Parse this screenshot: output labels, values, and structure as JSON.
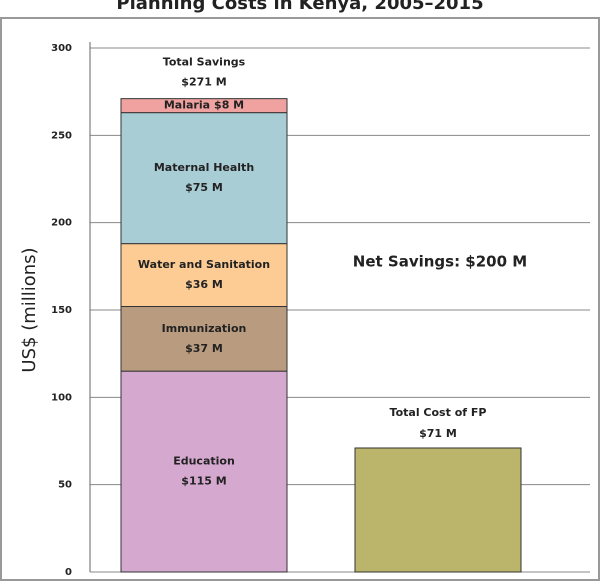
{
  "chart_data": {
    "type": "stacked_bar",
    "title": "Planning Costs in Kenya, 2005–2015",
    "ylabel": "US$ (millions)",
    "categories": [
      null,
      null
    ],
    "ylim": [
      0,
      300
    ],
    "yticks": [
      0,
      50,
      100,
      150,
      200,
      250,
      300
    ],
    "grid": true,
    "series": [
      {
        "name": "Education",
        "color": "#d5a8d0",
        "values": [
          115,
          null
        ],
        "value_labels": [
          "$115 M",
          null
        ]
      },
      {
        "name": "Immunization",
        "color": "#b99c80",
        "values": [
          37,
          null
        ],
        "value_labels": [
          "$37 M",
          null
        ]
      },
      {
        "name": "Water and Sanitation",
        "color": "#fdcc95",
        "values": [
          36,
          null
        ],
        "value_labels": [
          "$36 M",
          null
        ]
      },
      {
        "name": "Maternal Health",
        "color": "#a9cdd5",
        "values": [
          75,
          null
        ],
        "value_labels": [
          "$75 M",
          null
        ]
      },
      {
        "name": "Malaria",
        "color": "#f0a2a0",
        "values": [
          8,
          null
        ],
        "value_labels": [
          "$8 M",
          null
        ]
      },
      {
        "name": "Total Cost of FP",
        "color": "#bbb56b",
        "values": [
          null,
          71
        ],
        "value_labels": [
          null,
          "$71 M"
        ]
      }
    ],
    "annotations": [
      {
        "text": "Total Savings",
        "value": 271,
        "label": "$271 M"
      },
      {
        "text": "Net Savings: $200 M"
      }
    ]
  }
}
